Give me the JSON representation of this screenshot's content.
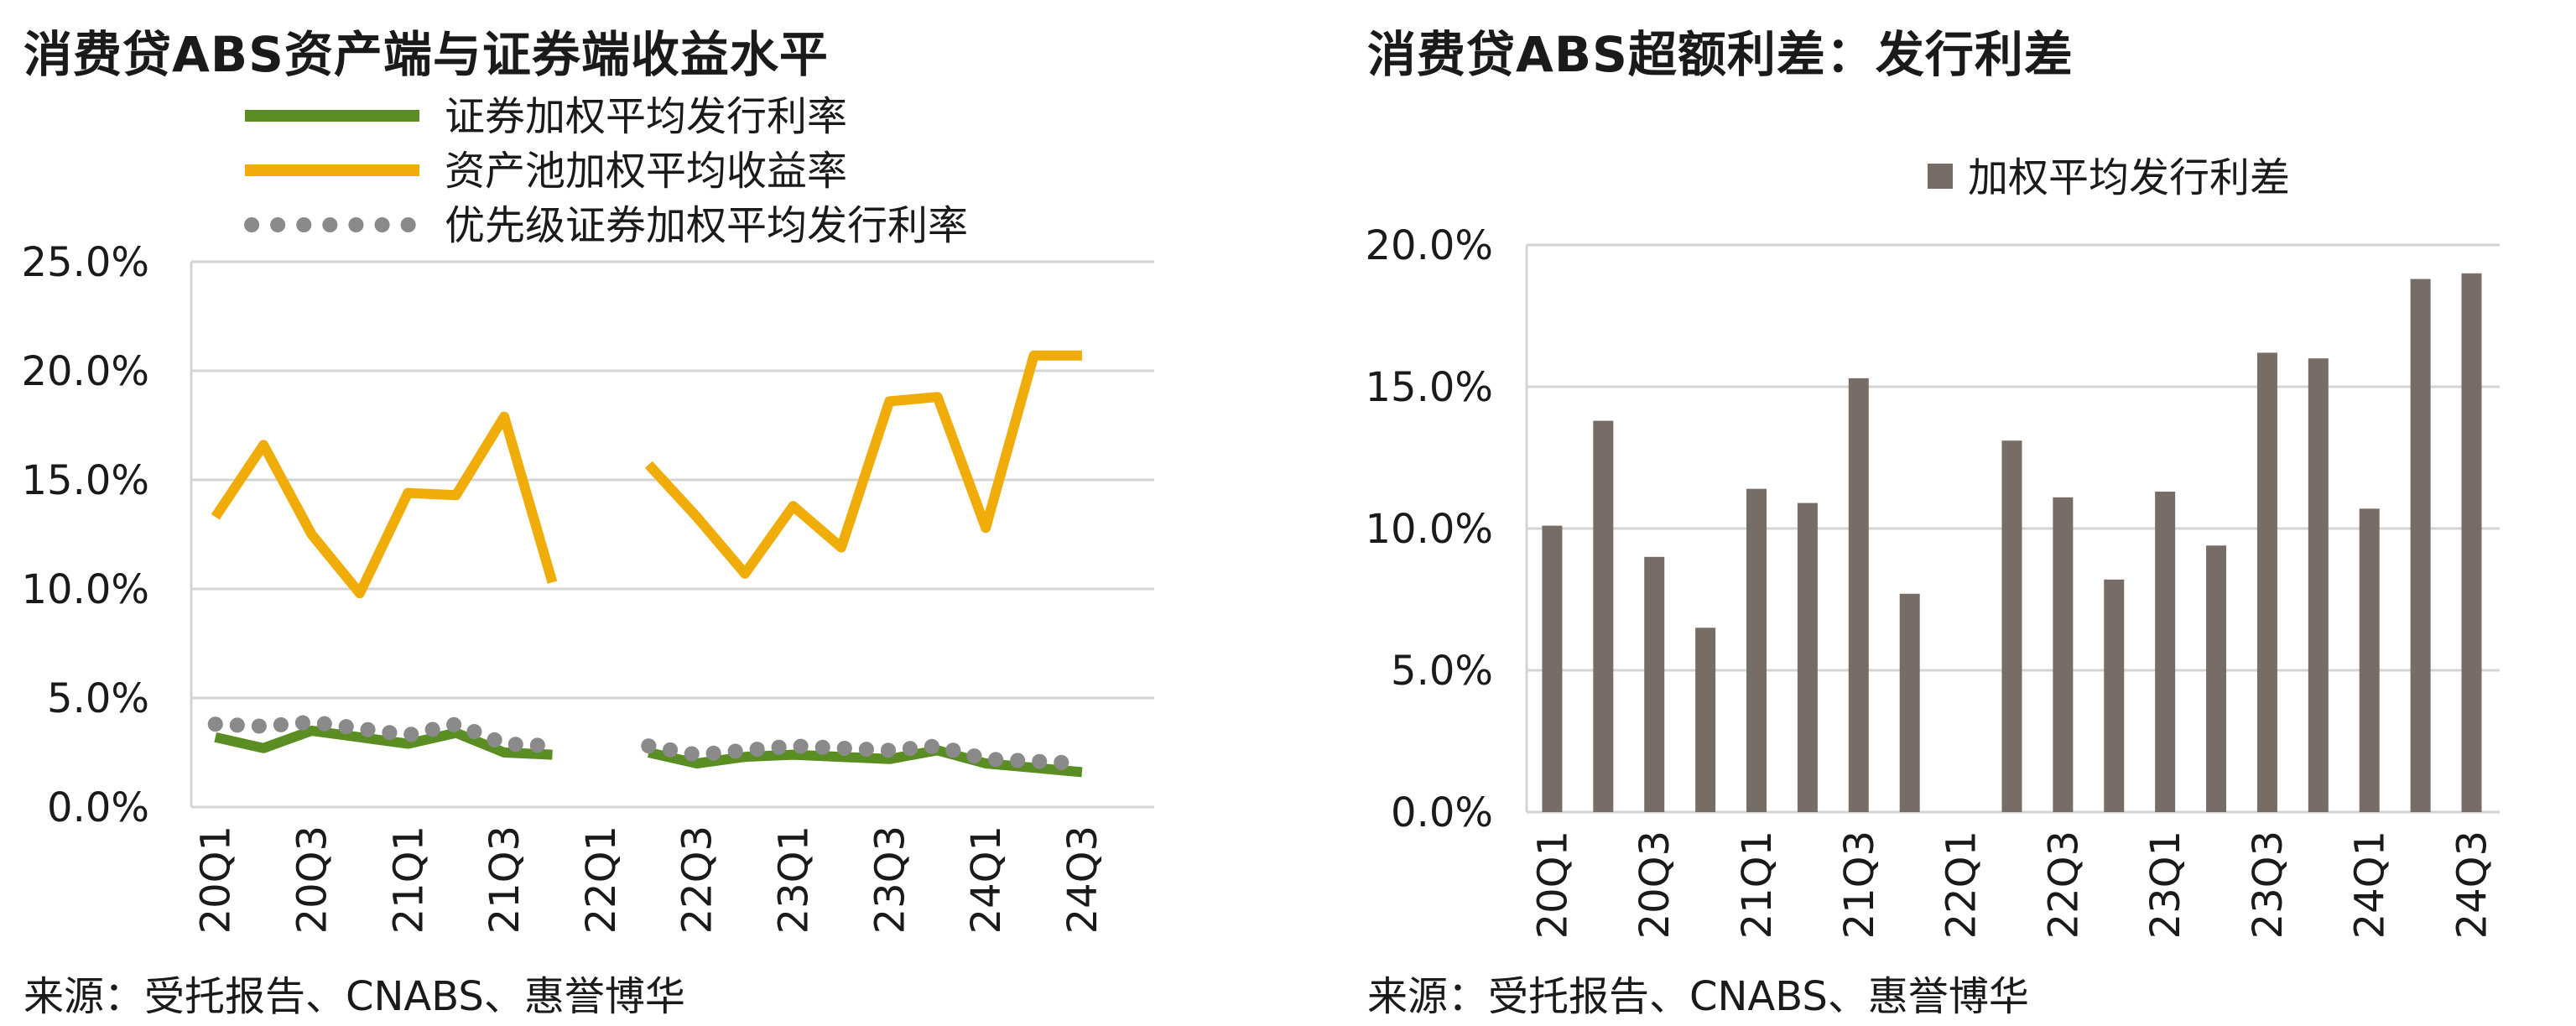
{
  "left": {
    "title": "消费贷ABS资产端与证券端收益水平",
    "source": "来源：受托报告、CNABS、惠誉博华"
  },
  "right": {
    "title": "消费贷ABS超额利差：发行利差",
    "source": "来源：受托报告、CNABS、惠誉博华"
  },
  "chart_data": [
    {
      "type": "line",
      "title": "消费贷ABS资产端与证券端收益水平",
      "categories": [
        "20Q1",
        "20Q2",
        "20Q3",
        "20Q4",
        "21Q1",
        "21Q2",
        "21Q3",
        "21Q4",
        "22Q1",
        "22Q2",
        "22Q3",
        "22Q4",
        "23Q1",
        "23Q2",
        "23Q3",
        "23Q4",
        "24Q1",
        "24Q2",
        "24Q3",
        "24Q4"
      ],
      "tick_labels": [
        "20Q1",
        "20Q3",
        "21Q1",
        "21Q3",
        "22Q1",
        "22Q3",
        "23Q1",
        "23Q3",
        "24Q1",
        "24Q3"
      ],
      "ylim": [
        0,
        25
      ],
      "yticks": [
        "0.0%",
        "5.0%",
        "10.0%",
        "15.0%",
        "20.0%",
        "25.0%"
      ],
      "grid": true,
      "legend_position": "top",
      "series": [
        {
          "name": "证券加权平均发行利率",
          "color": "#5a8e22",
          "style": "solid",
          "values": [
            3.2,
            2.7,
            3.5,
            3.2,
            2.9,
            3.4,
            2.5,
            2.4,
            null,
            2.5,
            2.0,
            2.3,
            2.4,
            2.3,
            2.2,
            2.6,
            2.0,
            1.8,
            1.6,
            null
          ]
        },
        {
          "name": "资产池加权平均收益率",
          "color": "#f0ad0a",
          "style": "solid",
          "values": [
            13.3,
            16.6,
            12.5,
            9.8,
            14.4,
            14.3,
            17.9,
            10.3,
            null,
            15.7,
            13.3,
            10.7,
            13.8,
            11.9,
            18.6,
            18.8,
            12.8,
            20.7,
            20.7,
            null
          ]
        },
        {
          "name": "优先级证券加权平均发行利率",
          "color": "#8a8a8a",
          "style": "dotted",
          "values": [
            3.8,
            3.7,
            3.9,
            3.6,
            3.3,
            3.8,
            2.9,
            2.8,
            null,
            2.8,
            2.4,
            2.6,
            2.8,
            2.7,
            2.6,
            2.8,
            2.2,
            2.1,
            2.0,
            null
          ]
        }
      ]
    },
    {
      "type": "bar",
      "title": "消费贷ABS超额利差：发行利差",
      "categories": [
        "20Q1",
        "20Q2",
        "20Q3",
        "20Q4",
        "21Q1",
        "21Q2",
        "21Q3",
        "21Q4",
        "22Q1",
        "22Q2",
        "22Q3",
        "22Q4",
        "23Q1",
        "23Q2",
        "23Q3",
        "23Q4",
        "24Q1",
        "24Q2",
        "24Q3"
      ],
      "tick_labels": [
        "20Q1",
        "20Q3",
        "21Q1",
        "21Q3",
        "22Q1",
        "22Q3",
        "23Q1",
        "23Q3",
        "24Q1",
        "24Q3"
      ],
      "ylim": [
        0,
        20
      ],
      "yticks": [
        "0.0%",
        "5.0%",
        "10.0%",
        "15.0%",
        "20.0%"
      ],
      "grid": true,
      "legend_position": "top",
      "series": [
        {
          "name": "加权平均发行利差",
          "color": "#776c66",
          "values": [
            10.1,
            13.8,
            9.0,
            6.5,
            11.4,
            10.9,
            15.3,
            7.7,
            null,
            13.1,
            11.1,
            8.2,
            11.3,
            9.4,
            16.2,
            16.0,
            10.7,
            18.8,
            19.0
          ]
        }
      ]
    }
  ]
}
